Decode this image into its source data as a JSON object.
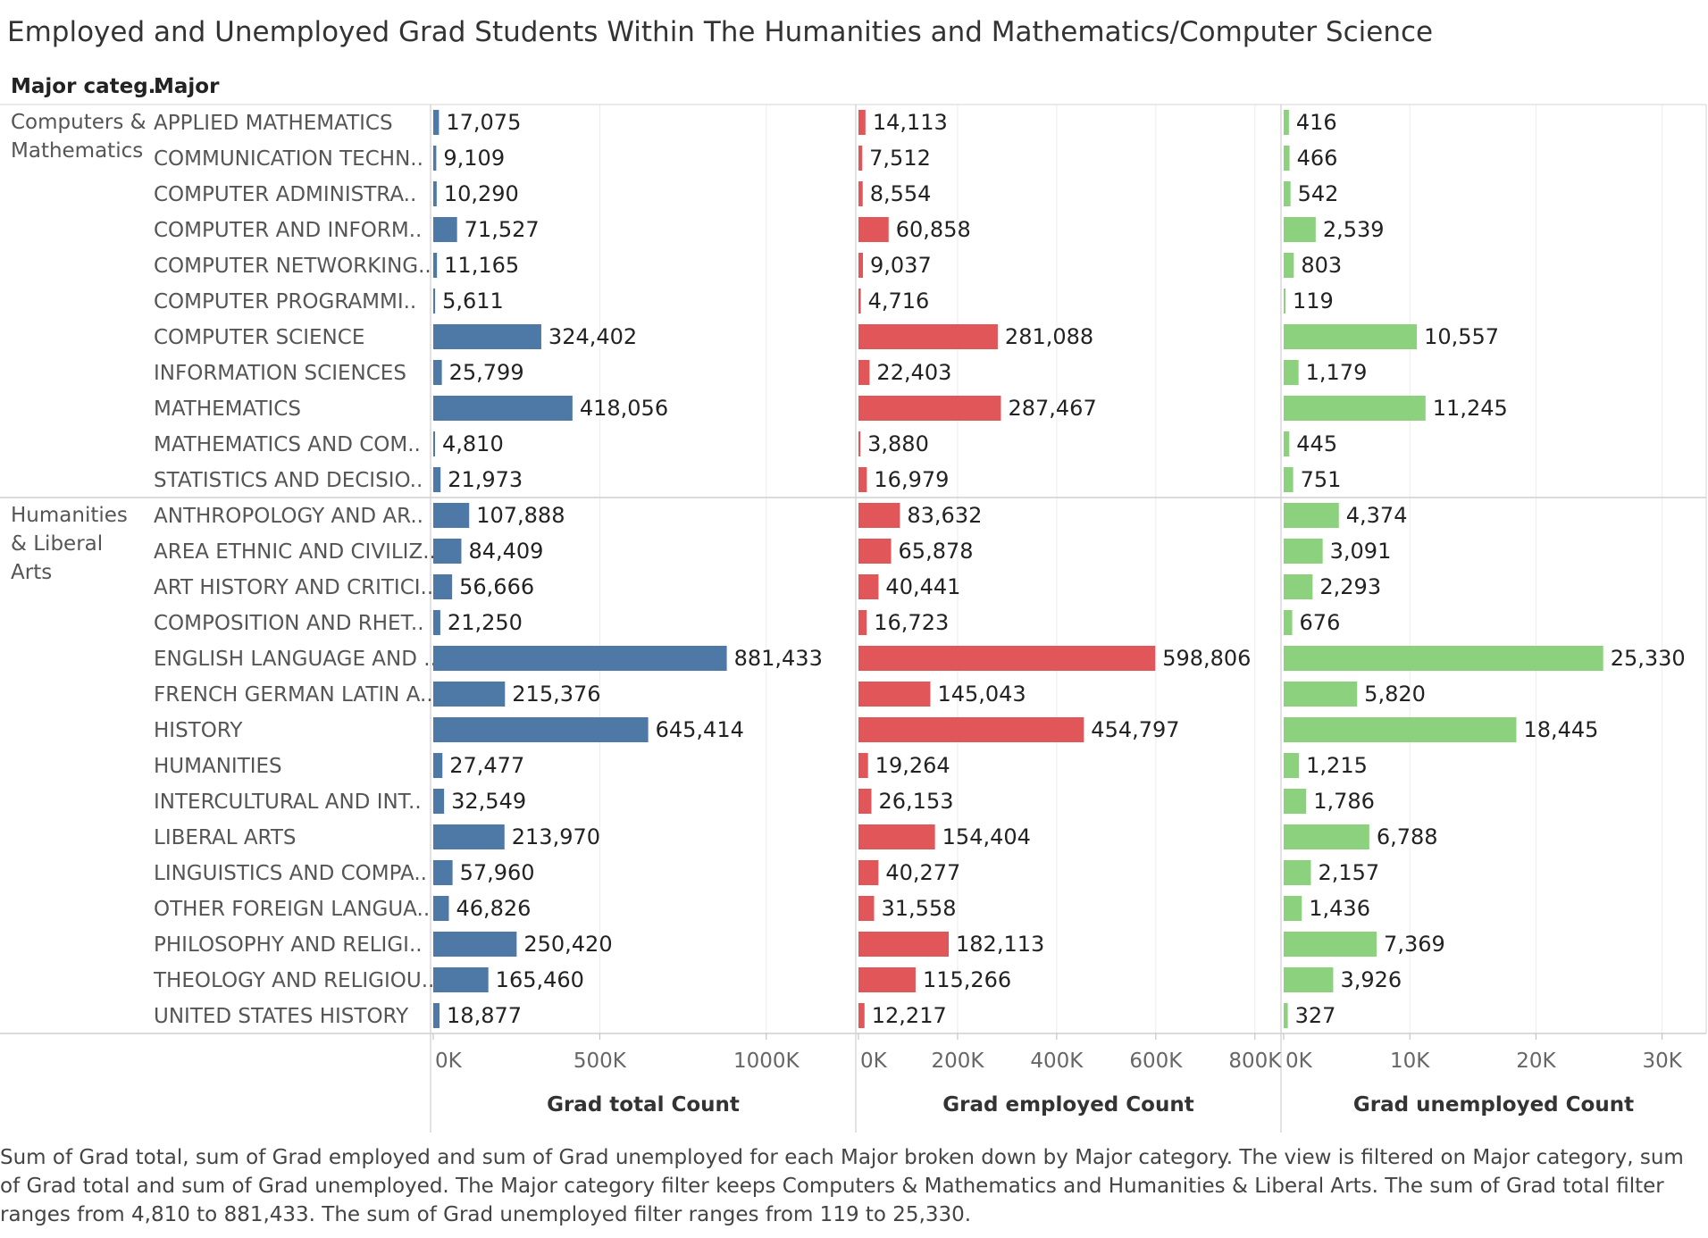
{
  "title": "Employed and Unemployed Grad Students Within The Humanities and Mathematics/Computer Science",
  "headers": {
    "category": "Major categ..",
    "major": "Major"
  },
  "caption": "Sum of Grad total, sum of Grad employed and sum of Grad unemployed for each Major broken down by Major category. The view is filtered on Major category, sum of Grad total and sum of Grad unemployed. The Major category filter keeps Computers & Mathematics and Humanities & Liberal Arts. The sum of Grad total filter ranges from 4,810 to 881,433. The sum of Grad unemployed filter ranges from 119 to 25,330.",
  "chart_data": {
    "type": "bar",
    "orientation": "horizontal",
    "groups": [
      {
        "label_lines": [
          "Computers &",
          "Mathematics"
        ],
        "rows": [
          {
            "major": "APPLIED MATHEMATICS",
            "total": 17075,
            "employed": 14113,
            "unemployed": 416,
            "total_label": "17,075",
            "employed_label": "14,113",
            "unemployed_label": "416"
          },
          {
            "major": "COMMUNICATION TECHN..",
            "total": 9109,
            "employed": 7512,
            "unemployed": 466,
            "total_label": "9,109",
            "employed_label": "7,512",
            "unemployed_label": "466"
          },
          {
            "major": "COMPUTER ADMINISTRA..",
            "total": 10290,
            "employed": 8554,
            "unemployed": 542,
            "total_label": "10,290",
            "employed_label": "8,554",
            "unemployed_label": "542"
          },
          {
            "major": "COMPUTER AND INFORM..",
            "total": 71527,
            "employed": 60858,
            "unemployed": 2539,
            "total_label": "71,527",
            "employed_label": "60,858",
            "unemployed_label": "2,539"
          },
          {
            "major": "COMPUTER NETWORKING..",
            "total": 11165,
            "employed": 9037,
            "unemployed": 803,
            "total_label": "11,165",
            "employed_label": "9,037",
            "unemployed_label": "803"
          },
          {
            "major": "COMPUTER PROGRAMMI..",
            "total": 5611,
            "employed": 4716,
            "unemployed": 119,
            "total_label": "5,611",
            "employed_label": "4,716",
            "unemployed_label": "119"
          },
          {
            "major": "COMPUTER SCIENCE",
            "total": 324402,
            "employed": 281088,
            "unemployed": 10557,
            "total_label": "324,402",
            "employed_label": "281,088",
            "unemployed_label": "10,557"
          },
          {
            "major": "INFORMATION SCIENCES",
            "total": 25799,
            "employed": 22403,
            "unemployed": 1179,
            "total_label": "25,799",
            "employed_label": "22,403",
            "unemployed_label": "1,179"
          },
          {
            "major": "MATHEMATICS",
            "total": 418056,
            "employed": 287467,
            "unemployed": 11245,
            "total_label": "418,056",
            "employed_label": "287,467",
            "unemployed_label": "11,245"
          },
          {
            "major": "MATHEMATICS AND COM..",
            "total": 4810,
            "employed": 3880,
            "unemployed": 445,
            "total_label": "4,810",
            "employed_label": "3,880",
            "unemployed_label": "445"
          },
          {
            "major": "STATISTICS AND DECISIO..",
            "total": 21973,
            "employed": 16979,
            "unemployed": 751,
            "total_label": "21,973",
            "employed_label": "16,979",
            "unemployed_label": "751"
          }
        ]
      },
      {
        "label_lines": [
          "Humanities",
          "& Liberal",
          "Arts"
        ],
        "rows": [
          {
            "major": "ANTHROPOLOGY AND AR..",
            "total": 107888,
            "employed": 83632,
            "unemployed": 4374,
            "total_label": "107,888",
            "employed_label": "83,632",
            "unemployed_label": "4,374"
          },
          {
            "major": "AREA ETHNIC AND CIVILIZ..",
            "total": 84409,
            "employed": 65878,
            "unemployed": 3091,
            "total_label": "84,409",
            "employed_label": "65,878",
            "unemployed_label": "3,091"
          },
          {
            "major": "ART HISTORY AND CRITICI..",
            "total": 56666,
            "employed": 40441,
            "unemployed": 2293,
            "total_label": "56,666",
            "employed_label": "40,441",
            "unemployed_label": "2,293"
          },
          {
            "major": "COMPOSITION AND RHET..",
            "total": 21250,
            "employed": 16723,
            "unemployed": 676,
            "total_label": "21,250",
            "employed_label": "16,723",
            "unemployed_label": "676"
          },
          {
            "major": "ENGLISH LANGUAGE AND ..",
            "total": 881433,
            "employed": 598806,
            "unemployed": 25330,
            "total_label": "881,433",
            "employed_label": "598,806",
            "unemployed_label": "25,330"
          },
          {
            "major": "FRENCH GERMAN LATIN A..",
            "total": 215376,
            "employed": 145043,
            "unemployed": 5820,
            "total_label": "215,376",
            "employed_label": "145,043",
            "unemployed_label": "5,820"
          },
          {
            "major": "HISTORY",
            "total": 645414,
            "employed": 454797,
            "unemployed": 18445,
            "total_label": "645,414",
            "employed_label": "454,797",
            "unemployed_label": "18,445"
          },
          {
            "major": "HUMANITIES",
            "total": 27477,
            "employed": 19264,
            "unemployed": 1215,
            "total_label": "27,477",
            "employed_label": "19,264",
            "unemployed_label": "1,215"
          },
          {
            "major": "INTERCULTURAL AND INT..",
            "total": 32549,
            "employed": 26153,
            "unemployed": 1786,
            "total_label": "32,549",
            "employed_label": "26,153",
            "unemployed_label": "1,786"
          },
          {
            "major": "LIBERAL ARTS",
            "total": 213970,
            "employed": 154404,
            "unemployed": 6788,
            "total_label": "213,970",
            "employed_label": "154,404",
            "unemployed_label": "6,788"
          },
          {
            "major": "LINGUISTICS AND COMPA..",
            "total": 57960,
            "employed": 40277,
            "unemployed": 2157,
            "total_label": "57,960",
            "employed_label": "40,277",
            "unemployed_label": "2,157"
          },
          {
            "major": "OTHER FOREIGN LANGUA..",
            "total": 46826,
            "employed": 31558,
            "unemployed": 1436,
            "total_label": "46,826",
            "employed_label": "31,558",
            "unemployed_label": "1,436"
          },
          {
            "major": "PHILOSOPHY AND RELIGI..",
            "total": 250420,
            "employed": 182113,
            "unemployed": 7369,
            "total_label": "250,420",
            "employed_label": "182,113",
            "unemployed_label": "7,369"
          },
          {
            "major": "THEOLOGY AND RELIGIOU..",
            "total": 165460,
            "employed": 115266,
            "unemployed": 3926,
            "total_label": "165,460",
            "employed_label": "115,266",
            "unemployed_label": "3,926"
          },
          {
            "major": "UNITED STATES HISTORY",
            "total": 18877,
            "employed": 12217,
            "unemployed": 327,
            "total_label": "18,877",
            "employed_label": "12,217",
            "unemployed_label": "327"
          }
        ]
      }
    ],
    "panels": [
      {
        "key": "total",
        "xlabel": "Grad total Count",
        "color": "#4e79a7",
        "xlim": [
          0,
          1250000
        ],
        "ticks": [
          0,
          500000,
          1000000
        ],
        "tick_labels": [
          "0K",
          "500K",
          "1000K"
        ]
      },
      {
        "key": "employed",
        "xlabel": "Grad employed Count",
        "color": "#e15759",
        "xlim": [
          0,
          840000
        ],
        "ticks": [
          0,
          200000,
          400000,
          600000,
          800000
        ],
        "tick_labels": [
          "0K",
          "200K",
          "400K",
          "600K",
          "800K"
        ]
      },
      {
        "key": "unemployed",
        "xlabel": "Grad unemployed Count",
        "color": "#8cd17d",
        "xlim": [
          0,
          33000
        ],
        "ticks": [
          0,
          10000,
          20000,
          30000
        ],
        "tick_labels": [
          "0K",
          "10K",
          "20K",
          "30K"
        ]
      }
    ],
    "grid": true,
    "legend": "none"
  }
}
